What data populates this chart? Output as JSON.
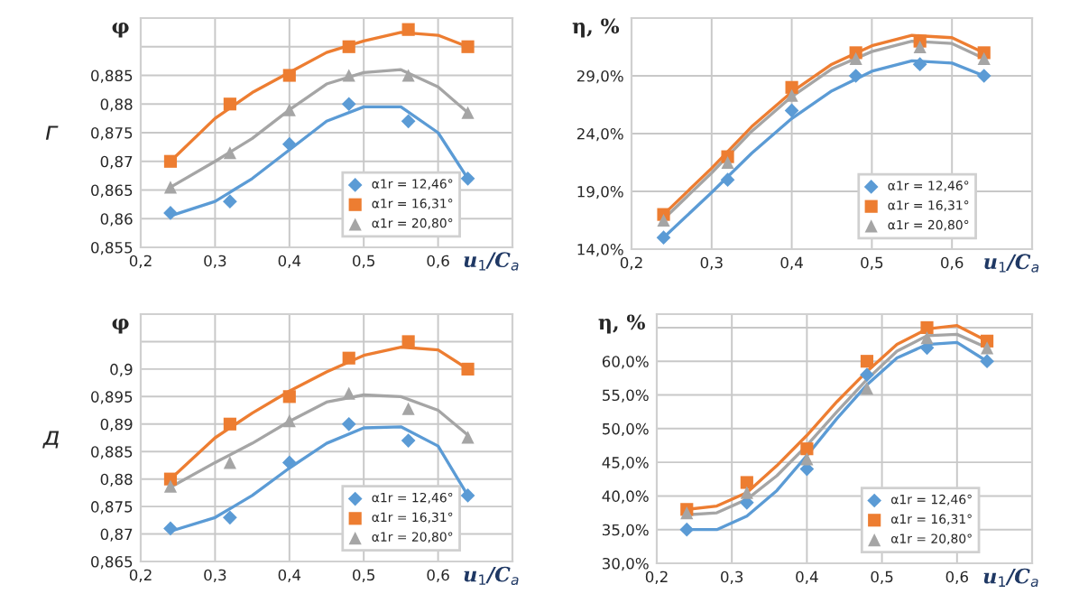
{
  "chart_data": [
    {
      "type": "scatter",
      "ylabel": "φ",
      "xlabel": "u$_{1}$/C$_{a}$",
      "annotations": [
        "г"
      ],
      "legend": "bottom right",
      "grid": true,
      "x": [
        0.24,
        0.32,
        0.4,
        0.48,
        0.56,
        0.64
      ],
      "xlim": [
        0.2,
        0.7
      ],
      "xticks": [
        {
          "value": 0.2,
          "label": "0,2"
        },
        {
          "value": 0.3,
          "label": "0,3"
        },
        {
          "value": 0.4,
          "label": "0,4"
        },
        {
          "value": 0.5,
          "label": "0,5"
        },
        {
          "value": 0.6,
          "label": "0,6"
        },
        {
          "value": 0.7,
          "label": null
        }
      ],
      "ylim": [
        0.855,
        0.895
      ],
      "yticks": [
        {
          "value": 0.855,
          "label": "0,855"
        },
        {
          "value": 0.86,
          "label": "0,86"
        },
        {
          "value": 0.865,
          "label": "0,865"
        },
        {
          "value": 0.87,
          "label": "0,87"
        },
        {
          "value": 0.875,
          "label": "0,875"
        },
        {
          "value": 0.88,
          "label": "0,88"
        },
        {
          "value": 0.885,
          "label": "0,885"
        },
        {
          "value": 0.89,
          "label": null
        },
        {
          "value": 0.895,
          "label": null
        }
      ],
      "series": [
        {
          "name": "α1r = 12,46°",
          "color": "#5b9bd5",
          "marker": "diamond",
          "values": [
            0.861,
            0.863,
            0.873,
            0.88,
            0.877,
            0.867
          ]
        },
        {
          "name": "α1r = 16,31°",
          "color": "#ed7d31",
          "marker": "square",
          "values": [
            0.87,
            0.88,
            0.885,
            0.89,
            0.893,
            0.89
          ]
        },
        {
          "name": "α1r = 20,80°",
          "color": "#a5a5a5",
          "marker": "triangle",
          "values": [
            0.8655,
            0.8715,
            0.879,
            0.885,
            0.885,
            0.8785
          ]
        },
        {
          "type": "line",
          "color": "#5b9bd5",
          "x": [
            0.24,
            0.3,
            0.35,
            0.4,
            0.45,
            0.5,
            0.55,
            0.6,
            0.64
          ],
          "values": [
            0.8605,
            0.863,
            0.867,
            0.872,
            0.877,
            0.8795,
            0.8795,
            0.875,
            0.867
          ]
        },
        {
          "type": "line",
          "color": "#ed7d31",
          "x": [
            0.24,
            0.3,
            0.35,
            0.4,
            0.45,
            0.5,
            0.55,
            0.6,
            0.64
          ],
          "values": [
            0.87,
            0.8775,
            0.882,
            0.8855,
            0.889,
            0.891,
            0.8925,
            0.892,
            0.89
          ]
        },
        {
          "type": "line",
          "color": "#a5a5a5",
          "x": [
            0.24,
            0.3,
            0.35,
            0.4,
            0.45,
            0.5,
            0.55,
            0.6,
            0.64
          ],
          "values": [
            0.8655,
            0.87,
            0.874,
            0.879,
            0.8835,
            0.8855,
            0.886,
            0.883,
            0.8785
          ]
        }
      ]
    },
    {
      "type": "scatter",
      "ylabel": "η, %",
      "xlabel": "u$_{1}$/C$_{a}$",
      "legend": "bottom right",
      "grid": true,
      "x": [
        0.24,
        0.32,
        0.4,
        0.48,
        0.56,
        0.64
      ],
      "xlim": [
        0.2,
        0.7
      ],
      "xticks": [
        {
          "value": 0.2,
          "label": "0,2"
        },
        {
          "value": 0.3,
          "label": "0,3"
        },
        {
          "value": 0.4,
          "label": "0,4"
        },
        {
          "value": 0.5,
          "label": "0,5"
        },
        {
          "value": 0.6,
          "label": "0,6"
        },
        {
          "value": 0.7,
          "label": null
        }
      ],
      "ylim": [
        14,
        34
      ],
      "yticks": [
        {
          "value": 14,
          "label": "14,0%"
        },
        {
          "value": 19,
          "label": "19,0%"
        },
        {
          "value": 24,
          "label": "24,0%"
        },
        {
          "value": 29,
          "label": "29,0%"
        },
        {
          "value": 34,
          "label": null
        }
      ],
      "series": [
        {
          "name": "α1r = 12,46°",
          "color": "#5b9bd5",
          "marker": "diamond",
          "values": [
            15,
            20,
            26,
            29,
            30,
            29
          ]
        },
        {
          "name": "α1r = 16,31°",
          "color": "#ed7d31",
          "marker": "square",
          "values": [
            17,
            22,
            28,
            31,
            32,
            31
          ]
        },
        {
          "name": "α1r = 20,80°",
          "color": "#a5a5a5",
          "marker": "triangle",
          "values": [
            16.5,
            21.5,
            27.3,
            30.5,
            31.5,
            30.5
          ]
        },
        {
          "type": "line",
          "color": "#5b9bd5",
          "x": [
            0.24,
            0.3,
            0.35,
            0.4,
            0.45,
            0.5,
            0.55,
            0.6,
            0.64
          ],
          "values": [
            15.0,
            18.9,
            22.3,
            25.3,
            27.7,
            29.4,
            30.3,
            30.1,
            29.0
          ]
        },
        {
          "type": "line",
          "color": "#ed7d31",
          "x": [
            0.24,
            0.3,
            0.35,
            0.4,
            0.45,
            0.5,
            0.55,
            0.6,
            0.64
          ],
          "values": [
            17.0,
            21.0,
            24.6,
            27.6,
            30.0,
            31.6,
            32.5,
            32.3,
            31.0
          ]
        },
        {
          "type": "line",
          "color": "#a5a5a5",
          "x": [
            0.24,
            0.3,
            0.35,
            0.4,
            0.45,
            0.5,
            0.55,
            0.6,
            0.64
          ],
          "values": [
            16.6,
            20.6,
            24.2,
            27.2,
            29.6,
            31.1,
            32.0,
            31.8,
            30.5
          ]
        }
      ]
    },
    {
      "type": "scatter",
      "ylabel": "φ",
      "xlabel": "u$_{1}$/C$_{a}$",
      "annotations": [
        "д"
      ],
      "legend": "bottom right",
      "grid": true,
      "x": [
        0.24,
        0.32,
        0.4,
        0.48,
        0.56,
        0.64
      ],
      "xlim": [
        0.2,
        0.7
      ],
      "xticks": [
        {
          "value": 0.2,
          "label": "0,2"
        },
        {
          "value": 0.3,
          "label": "0,3"
        },
        {
          "value": 0.4,
          "label": "0,4"
        },
        {
          "value": 0.5,
          "label": "0,5"
        },
        {
          "value": 0.6,
          "label": "0,6"
        },
        {
          "value": 0.7,
          "label": null
        }
      ],
      "ylim": [
        0.865,
        0.91
      ],
      "yticks": [
        {
          "value": 0.865,
          "label": "0,865"
        },
        {
          "value": 0.87,
          "label": "0,87"
        },
        {
          "value": 0.875,
          "label": "0,875"
        },
        {
          "value": 0.88,
          "label": "0,88"
        },
        {
          "value": 0.885,
          "label": "0,885"
        },
        {
          "value": 0.89,
          "label": "0,89"
        },
        {
          "value": 0.895,
          "label": "0,895"
        },
        {
          "value": 0.9,
          "label": "0,9"
        },
        {
          "value": 0.905,
          "label": null
        },
        {
          "value": 0.91,
          "label": null
        }
      ],
      "series": [
        {
          "name": "α1r = 12,46°",
          "color": "#5b9bd5",
          "marker": "diamond",
          "values": [
            0.871,
            0.873,
            0.883,
            0.89,
            0.887,
            0.877
          ]
        },
        {
          "name": "α1r = 16,31°",
          "color": "#ed7d31",
          "marker": "square",
          "values": [
            0.88,
            0.89,
            0.895,
            0.902,
            0.905,
            0.9
          ]
        },
        {
          "name": "α1r = 20,80°",
          "color": "#a5a5a5",
          "marker": "triangle",
          "values": [
            0.8787,
            0.883,
            0.8906,
            0.8956,
            0.8928,
            0.8876
          ]
        },
        {
          "type": "line",
          "color": "#5b9bd5",
          "x": [
            0.24,
            0.3,
            0.35,
            0.4,
            0.45,
            0.5,
            0.55,
            0.6,
            0.64
          ],
          "values": [
            0.8705,
            0.873,
            0.877,
            0.882,
            0.8865,
            0.8893,
            0.8895,
            0.886,
            0.877
          ]
        },
        {
          "type": "line",
          "color": "#ed7d31",
          "x": [
            0.24,
            0.3,
            0.35,
            0.4,
            0.45,
            0.5,
            0.55,
            0.6,
            0.64
          ],
          "values": [
            0.88,
            0.8875,
            0.892,
            0.896,
            0.8995,
            0.9025,
            0.904,
            0.9035,
            0.9
          ]
        },
        {
          "type": "line",
          "color": "#a5a5a5",
          "x": [
            0.24,
            0.3,
            0.35,
            0.4,
            0.45,
            0.5,
            0.55,
            0.6,
            0.64
          ],
          "values": [
            0.8785,
            0.883,
            0.8865,
            0.8905,
            0.894,
            0.8953,
            0.895,
            0.8925,
            0.888
          ]
        }
      ]
    },
    {
      "type": "scatter",
      "ylabel": "η, %",
      "xlabel": "u$_{1}$/C$_{a}$",
      "legend": "bottom right",
      "grid": true,
      "x": [
        0.24,
        0.32,
        0.4,
        0.48,
        0.56,
        0.64
      ],
      "xlim": [
        0.2,
        0.7
      ],
      "xticks": [
        {
          "value": 0.2,
          "label": "0,2"
        },
        {
          "value": 0.3,
          "label": "0,3"
        },
        {
          "value": 0.4,
          "label": "0,4"
        },
        {
          "value": 0.5,
          "label": "0,5"
        },
        {
          "value": 0.6,
          "label": "0,6"
        },
        {
          "value": 0.7,
          "label": null
        }
      ],
      "ylim": [
        30,
        67
      ],
      "yticks": [
        {
          "value": 30,
          "label": "30,0%"
        },
        {
          "value": 35,
          "label": "35,0%"
        },
        {
          "value": 40,
          "label": "40,0%"
        },
        {
          "value": 45,
          "label": "45,0%"
        },
        {
          "value": 50,
          "label": "50,0%"
        },
        {
          "value": 55,
          "label": "55,0%"
        },
        {
          "value": 60,
          "label": "60,0%"
        },
        {
          "value": 65,
          "label": null
        }
      ],
      "series": [
        {
          "name": "α1r = 12,46°",
          "color": "#5b9bd5",
          "marker": "diamond",
          "values": [
            35,
            39,
            44,
            58,
            62,
            60
          ]
        },
        {
          "name": "α1r = 16,31°",
          "color": "#ed7d31",
          "marker": "square",
          "values": [
            38,
            42,
            47,
            60,
            65,
            63
          ]
        },
        {
          "name": "α1r = 20,80°",
          "color": "#a5a5a5",
          "marker": "triangle",
          "values": [
            37.5,
            40.5,
            45.5,
            56,
            63.5,
            62
          ]
        },
        {
          "type": "line",
          "color": "#5b9bd5",
          "x": [
            0.24,
            0.28,
            0.32,
            0.36,
            0.4,
            0.44,
            0.48,
            0.52,
            0.56,
            0.6,
            0.64
          ],
          "values": [
            35.0,
            35.0,
            37.0,
            40.8,
            46.0,
            51.5,
            56.5,
            60.5,
            62.5,
            62.8,
            60.0
          ]
        },
        {
          "type": "line",
          "color": "#ed7d31",
          "x": [
            0.24,
            0.28,
            0.32,
            0.36,
            0.4,
            0.44,
            0.48,
            0.52,
            0.56,
            0.6,
            0.64
          ],
          "values": [
            38.0,
            38.5,
            40.5,
            44.5,
            49.0,
            54.0,
            58.5,
            62.5,
            64.8,
            65.3,
            63.0
          ]
        },
        {
          "type": "line",
          "color": "#a5a5a5",
          "x": [
            0.24,
            0.28,
            0.32,
            0.36,
            0.4,
            0.44,
            0.48,
            0.52,
            0.56,
            0.6,
            0.64
          ],
          "values": [
            37.2,
            37.5,
            39.5,
            43.0,
            47.5,
            52.5,
            57.3,
            61.5,
            63.8,
            64.0,
            62.0
          ]
        }
      ]
    }
  ]
}
